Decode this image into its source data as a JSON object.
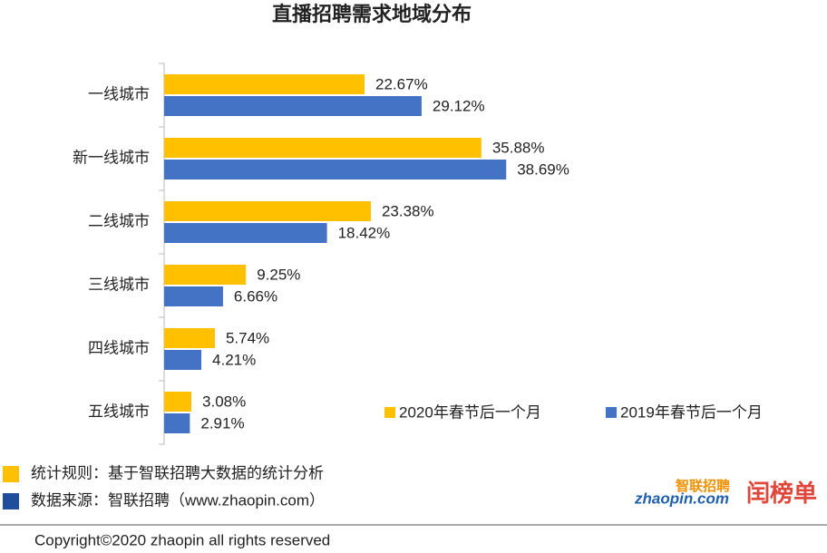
{
  "chart_data": {
    "type": "hbar",
    "title": "直播招聘需求地域分布",
    "categories": [
      "一线城市",
      "新一线城市",
      "二线城市",
      "三线城市",
      "四线城市",
      "五线城市"
    ],
    "series": [
      {
        "name": "2020年春节后一个月",
        "color": "#FFC000",
        "values": [
          22.67,
          35.88,
          23.38,
          9.25,
          5.74,
          3.08
        ],
        "value_labels": [
          "22.67%",
          "35.88%",
          "23.38%",
          "9.25%",
          "5.74%",
          "3.08%"
        ]
      },
      {
        "name": "2019年春节后一个月",
        "color": "#4472C4",
        "values": [
          29.12,
          38.69,
          18.42,
          6.66,
          4.21,
          2.91
        ],
        "value_labels": [
          "29.12%",
          "38.69%",
          "18.42%",
          "6.66%",
          "4.21%",
          "2.91%"
        ]
      }
    ],
    "xlim": [
      0,
      40
    ],
    "legend": "lower right"
  },
  "notes": [
    "统计规则：基于智联招聘大数据的统计分析",
    "数据来源：智联招聘（www.zhaopin.com）"
  ],
  "logos": [
    "智联招聘",
    "zhaopin.com",
    "闰榜单"
  ],
  "copyright": "Copyright©2020 zhaopin all rights reserved"
}
